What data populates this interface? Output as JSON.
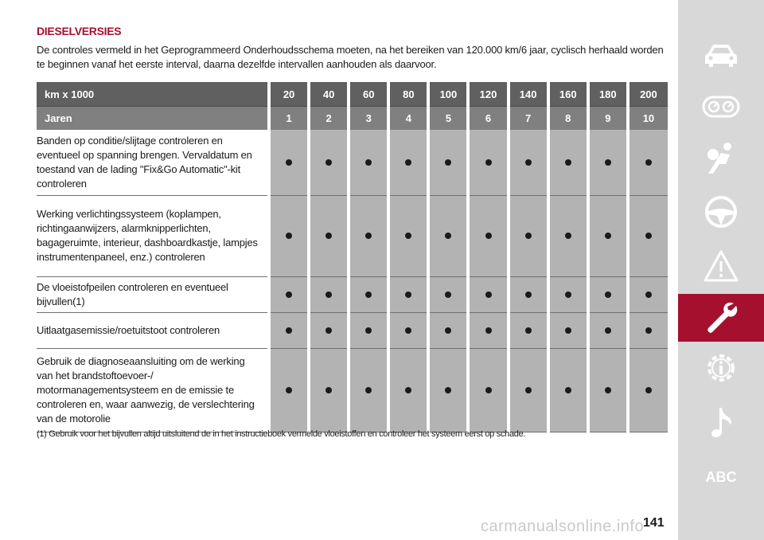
{
  "section_title": "DIESELVERSIES",
  "intro": "De controles vermeld in het Geprogrammeerd Onderhoudsschema moeten, na het bereiken van 120.000 km/6 jaar, cyclisch herhaald worden te beginnen vanaf het eerste interval, daarna dezelfde intervallen aanhouden als daarvoor.",
  "table": {
    "km_label": "km x 1000",
    "years_label": "Jaren",
    "km_values": [
      "20",
      "40",
      "60",
      "80",
      "100",
      "120",
      "140",
      "160",
      "180",
      "200"
    ],
    "year_values": [
      "1",
      "2",
      "3",
      "4",
      "5",
      "6",
      "7",
      "8",
      "9",
      "10"
    ],
    "rows": [
      {
        "task": "Banden op conditie/slijtage controleren en eventueel op spanning brengen. Vervaldatum en toestand van de lading \"Fix&Go Automatic\"-kit controleren",
        "marks": [
          true,
          true,
          true,
          true,
          true,
          true,
          true,
          true,
          true,
          true
        ]
      },
      {
        "task": "Werking verlichtingssysteem (koplampen, richtingaanwijzers, alarmknipperlichten, bagageruimte, interieur, dashboardkastje, lampjes instrumentenpaneel, enz.) controleren",
        "marks": [
          true,
          true,
          true,
          true,
          true,
          true,
          true,
          true,
          true,
          true
        ]
      },
      {
        "task": "De vloeistofpeilen controleren en eventueel bijvullen(1)",
        "marks": [
          true,
          true,
          true,
          true,
          true,
          true,
          true,
          true,
          true,
          true
        ]
      },
      {
        "task": "Uitlaatgasemissie/roetuitstoot controleren",
        "marks": [
          true,
          true,
          true,
          true,
          true,
          true,
          true,
          true,
          true,
          true
        ]
      },
      {
        "task": "Gebruik de diagnoseaansluiting om de werking van het brandstoftoevoer-/ motormanagementsysteem en de emissie te controleren en, waar aanwezig, de verslechtering van de motorolie",
        "marks": [
          true,
          true,
          true,
          true,
          true,
          true,
          true,
          true,
          true,
          true
        ]
      }
    ]
  },
  "footnote": "(1) Gebruik voor het bijvullen altijd uitsluitend de in het instructieboek vermelde vloeistoffen en controleer het systeem eerst op schade.",
  "sidebar": {
    "items": [
      {
        "name": "car-icon"
      },
      {
        "name": "dashboard-gauges-icon"
      },
      {
        "name": "airbag-seat-icon"
      },
      {
        "name": "steering-wheel-icon"
      },
      {
        "name": "warning-triangle-icon"
      },
      {
        "name": "wrench-icon",
        "active": true
      },
      {
        "name": "gear-info-icon"
      },
      {
        "name": "music-note-icon"
      }
    ],
    "abc_label": "ABC",
    "active_color": "#a5102f"
  },
  "page_number": "141",
  "watermark": "carmanualsonline.info"
}
